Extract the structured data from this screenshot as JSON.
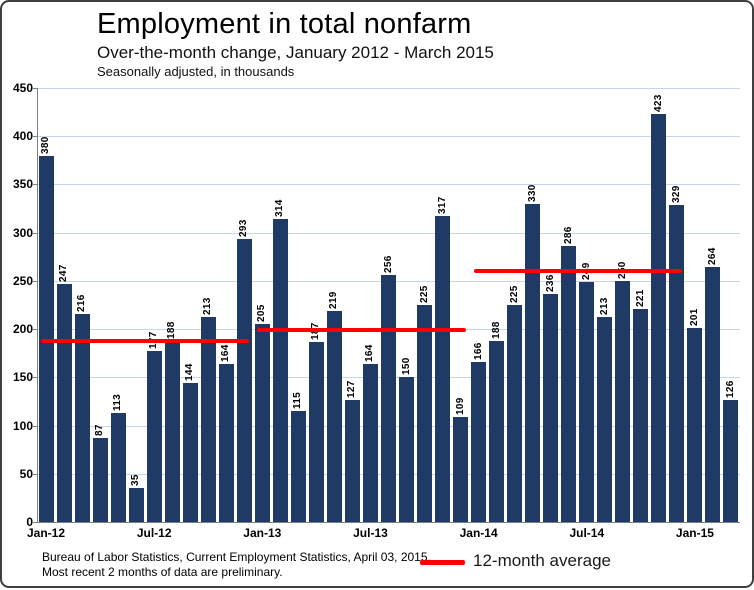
{
  "header": {
    "title": "Employment in total nonfarm",
    "subtitle": "Over-the-month change, January 2012 - March 2015",
    "note": "Seasonally adjusted, in thousands"
  },
  "footer": {
    "source_line1": "Bureau of Labor Statistics, Current Employment Statistics, April 03, 2015.",
    "source_line2": "Most recent 2 months of data are preliminary.",
    "legend_label": "12-month average"
  },
  "colors": {
    "bar": "#1f3a64",
    "average_line": "#ff0000",
    "gridline": "#c7d5ec",
    "axis": "#808080"
  },
  "chart_data": {
    "type": "bar",
    "title": "Employment in total nonfarm",
    "subtitle": "Over-the-month change, January 2012 - March 2015",
    "units": "Seasonally adjusted, in thousands",
    "categories": [
      "Jan-12",
      "Feb-12",
      "Mar-12",
      "Apr-12",
      "May-12",
      "Jun-12",
      "Jul-12",
      "Aug-12",
      "Sep-12",
      "Oct-12",
      "Nov-12",
      "Dec-12",
      "Jan-13",
      "Feb-13",
      "Mar-13",
      "Apr-13",
      "May-13",
      "Jun-13",
      "Jul-13",
      "Aug-13",
      "Sep-13",
      "Oct-13",
      "Nov-13",
      "Dec-13",
      "Jan-14",
      "Feb-14",
      "Mar-14",
      "Apr-14",
      "May-14",
      "Jun-14",
      "Jul-14",
      "Aug-14",
      "Sep-14",
      "Oct-14",
      "Nov-14",
      "Dec-14",
      "Jan-15",
      "Feb-15",
      "Mar-15"
    ],
    "values": [
      380,
      247,
      216,
      87,
      113,
      35,
      177,
      188,
      144,
      213,
      164,
      293,
      205,
      314,
      115,
      187,
      219,
      127,
      164,
      256,
      150,
      225,
      317,
      109,
      166,
      188,
      225,
      330,
      236,
      286,
      249,
      213,
      250,
      221,
      423,
      329,
      201,
      264,
      126
    ],
    "ylim": [
      0,
      450
    ],
    "ytick_step": 50,
    "grid": true,
    "legend_position": "bottom",
    "xtick_labels": [
      "Jan-12",
      "Jul-12",
      "Jan-13",
      "Jul-13",
      "Jan-14",
      "Jul-14",
      "Jan-15"
    ],
    "xtick_slots": [
      0,
      6,
      12,
      18,
      24,
      30,
      36
    ],
    "averages": [
      {
        "period": "2012",
        "value": 188,
        "start_index": 0,
        "end_index": 11
      },
      {
        "period": "2013",
        "value": 199,
        "start_index": 12,
        "end_index": 23
      },
      {
        "period": "2014",
        "value": 260,
        "start_index": 24,
        "end_index": 35
      }
    ]
  }
}
